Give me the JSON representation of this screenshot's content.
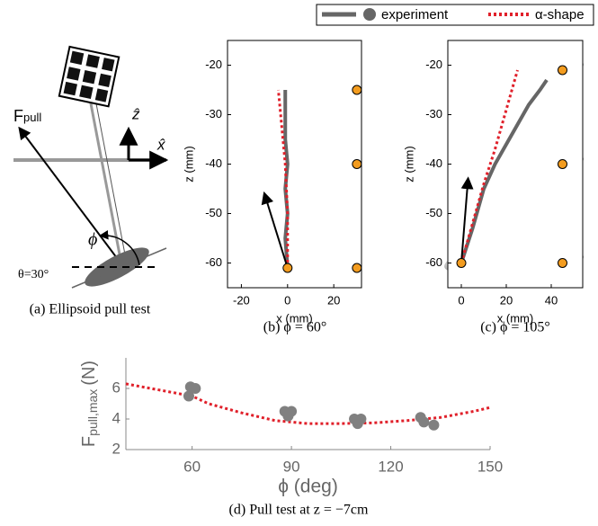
{
  "legend": [
    {
      "label": "experiment",
      "color": "#666666"
    },
    {
      "label": "α-shape",
      "color": "#e0202a"
    }
  ],
  "diagram": {
    "force_label": "F",
    "force_sub": "pull",
    "z_axis": "ẑ",
    "x_axis": "x̂",
    "phi": "ϕ",
    "theta": "θ=30°",
    "caption": "(a) Ellipsoid pull test"
  },
  "chart_data": [
    {
      "type": "line",
      "caption": "(b) ϕ = 60°",
      "xlabel": "x (mm)",
      "ylabel": "z (mm)",
      "xlim": [
        -26,
        32
      ],
      "xticks": [
        -20,
        0,
        20
      ],
      "ylim": [
        -65,
        -15
      ],
      "yticks": [
        -60,
        -50,
        -40,
        -30,
        -20
      ],
      "series": [
        {
          "style": "solid",
          "color": "#666666",
          "x": [
            0,
            -1,
            0,
            -1,
            0,
            -1,
            -1,
            -1
          ],
          "values": [
            -61,
            -55,
            -50,
            -45,
            -40,
            -35,
            -30,
            -25
          ]
        },
        {
          "style": "dashed",
          "color": "#e0202a",
          "x": [
            0,
            0,
            -1,
            -2,
            -3,
            -4
          ],
          "values": [
            -61,
            -50,
            -40,
            -35,
            -30,
            -25
          ]
        },
        {
          "style": "arrow",
          "color": "#000000",
          "x": [
            0,
            -10
          ],
          "values": [
            -61,
            -46
          ]
        },
        {
          "style": "points",
          "color": "#f39c1f",
          "x": [
            0,
            30,
            30,
            30
          ],
          "values": [
            -61,
            -25,
            -40,
            -61
          ]
        }
      ]
    },
    {
      "type": "line",
      "caption": "(c) ϕ = 105°",
      "xlabel": "x (mm)",
      "ylabel": "z (mm)",
      "xlim": [
        -6,
        54
      ],
      "xticks": [
        0,
        20,
        40
      ],
      "ylim": [
        -65,
        -15
      ],
      "yticks": [
        -60,
        -50,
        -40,
        -30,
        -20
      ],
      "series": [
        {
          "style": "solid",
          "color": "#666666",
          "x": [
            0,
            5,
            10,
            15,
            20,
            25,
            30,
            35,
            38
          ],
          "values": [
            -60,
            -53,
            -45,
            -40,
            -36,
            -32,
            -28,
            -25,
            -23
          ]
        },
        {
          "style": "dashed",
          "color": "#e0202a",
          "x": [
            0,
            5,
            10,
            15,
            20,
            25
          ],
          "values": [
            -60,
            -52,
            -44,
            -37,
            -29,
            -21
          ]
        },
        {
          "style": "arrow",
          "color": "#000000",
          "x": [
            0,
            3
          ],
          "values": [
            -60,
            -43
          ]
        },
        {
          "style": "points",
          "color": "#f39c1f",
          "x": [
            0,
            45,
            45,
            45
          ],
          "values": [
            -60,
            -21,
            -40,
            -60
          ]
        }
      ]
    },
    {
      "type": "scatter",
      "caption": "(d) Pull test at z = −7cm",
      "xlabel": "ϕ (deg)",
      "ylabel": "F",
      "ylabel_sub": "pull,max",
      "ylabel_unit": "(N)",
      "xlim": [
        40,
        150
      ],
      "xticks": [
        60,
        90,
        120,
        150
      ],
      "ylim": [
        2,
        8
      ],
      "yticks": [
        2,
        4,
        6
      ],
      "series": [
        {
          "style": "dashed",
          "color": "#e0202a",
          "x": [
            40,
            50,
            60,
            65,
            75,
            85,
            95,
            105,
            115,
            125,
            135,
            145,
            150
          ],
          "values": [
            6.3,
            5.9,
            5.5,
            5.0,
            4.4,
            3.9,
            3.7,
            3.7,
            3.75,
            3.9,
            4.1,
            4.5,
            4.75
          ]
        },
        {
          "style": "points",
          "color": "#808080",
          "x": [
            59,
            59.5,
            61,
            88,
            89,
            90,
            109,
            110,
            111,
            129,
            130,
            133
          ],
          "values": [
            5.5,
            6.1,
            6.0,
            4.5,
            4.2,
            4.5,
            4.0,
            3.7,
            4.0,
            4.1,
            3.8,
            3.6
          ]
        }
      ]
    }
  ]
}
